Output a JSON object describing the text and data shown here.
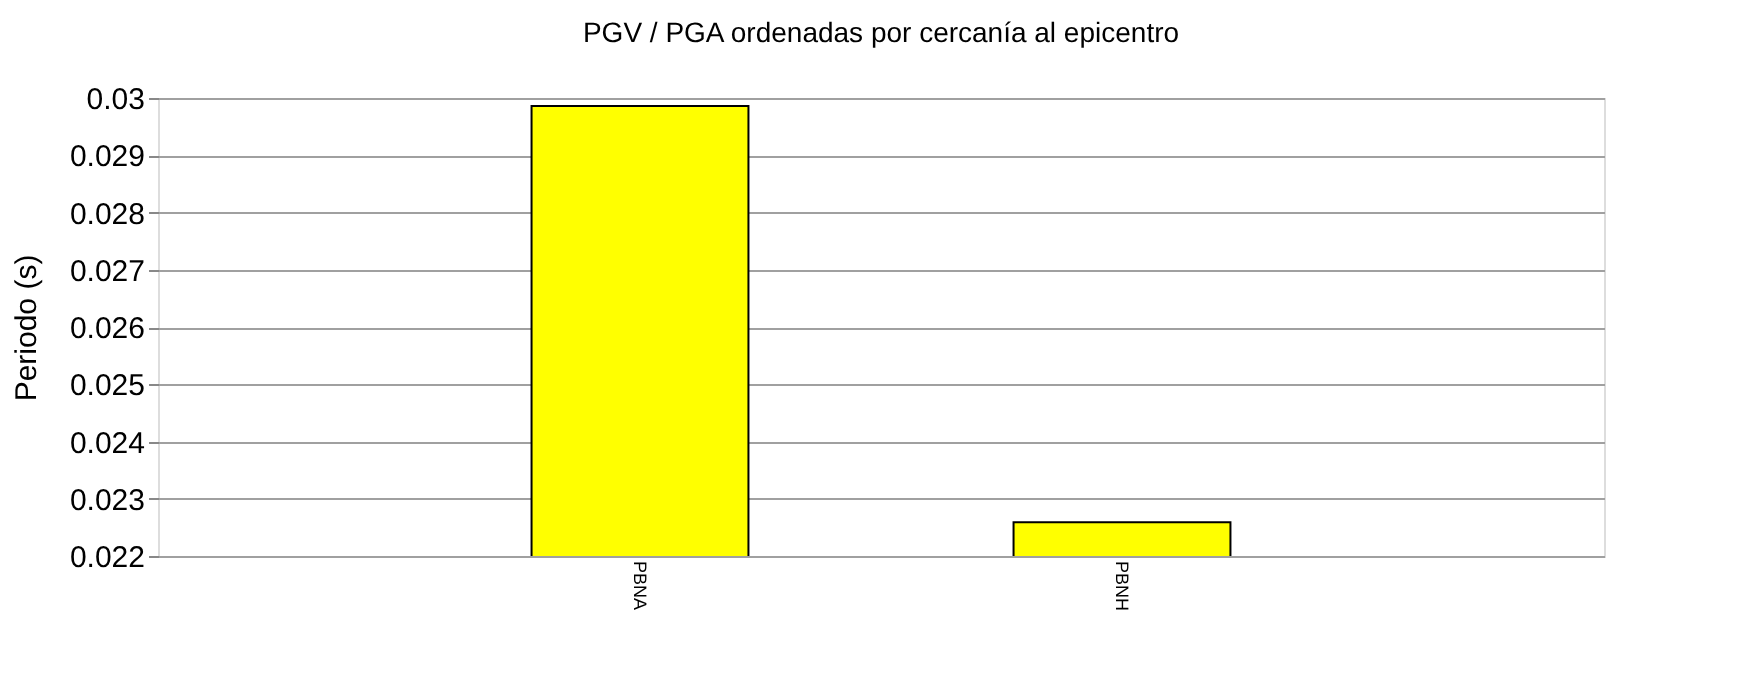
{
  "chart_data": {
    "type": "bar",
    "title": "PGV / PGA ordenadas por cercanía al epicentro",
    "ylabel": "Periodo (s)",
    "categories": [
      "PBNA",
      "PBNH"
    ],
    "values": [
      0.02986,
      0.02259
    ],
    "color": "#ffff00",
    "ylim": [
      0.022,
      0.03
    ],
    "yticks": [
      0.022,
      0.023,
      0.024,
      0.025,
      0.026,
      0.027,
      0.028,
      0.029,
      0.03
    ],
    "grid": "y"
  }
}
